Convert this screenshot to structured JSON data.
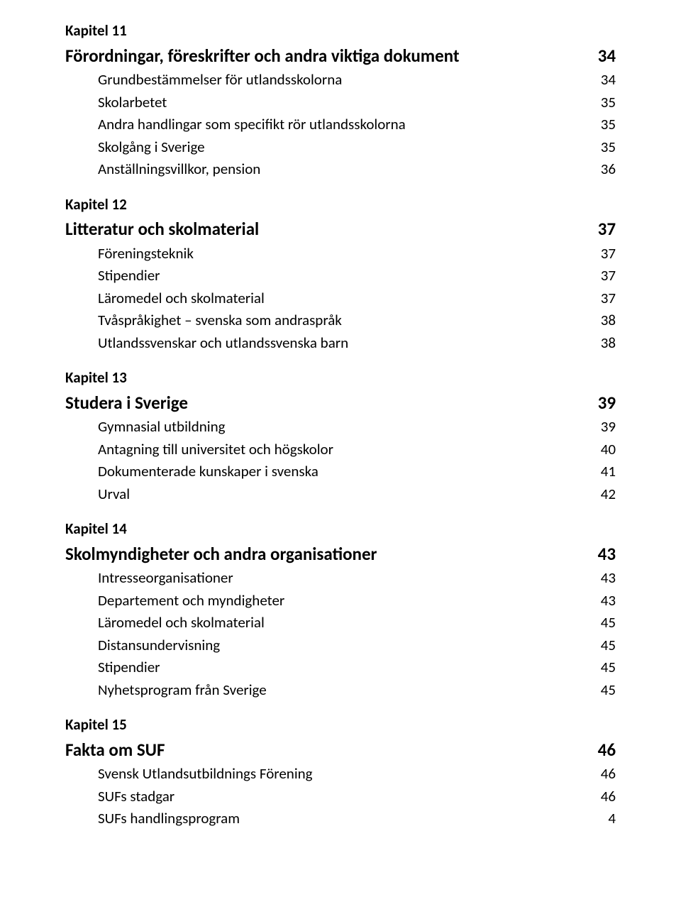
{
  "chapters": [
    {
      "label": "Kapitel 11",
      "title": "Förordningar, föreskrifter och andra viktiga dokument",
      "page": "34",
      "items": [
        {
          "label": "Grundbestämmelser för utlandsskolorna",
          "page": "34"
        },
        {
          "label": "Skolarbetet",
          "page": "35"
        },
        {
          "label": "Andra handlingar som specifikt rör utlandsskolorna",
          "page": "35"
        },
        {
          "label": "Skolgång i Sverige",
          "page": "35"
        },
        {
          "label": "Anställningsvillkor, pension",
          "page": "36"
        }
      ]
    },
    {
      "label": "Kapitel 12",
      "title": "Litteratur och skolmaterial",
      "page": "37",
      "items": [
        {
          "label": "Föreningsteknik",
          "page": "37"
        },
        {
          "label": "Stipendier",
          "page": "37"
        },
        {
          "label": "Läromedel och skolmaterial",
          "page": "37"
        },
        {
          "label": "Tvåspråkighet – svenska som andraspråk",
          "page": "38"
        },
        {
          "label": "Utlandssvenskar och utlandssvenska barn",
          "page": "38"
        }
      ]
    },
    {
      "label": "Kapitel 13",
      "title": "Studera i Sverige",
      "page": "39",
      "items": [
        {
          "label": "Gymnasial utbildning",
          "page": "39"
        },
        {
          "label": "Antagning till universitet och högskolor",
          "page": "40"
        },
        {
          "label": "Dokumenterade kunskaper i svenska",
          "page": "41"
        },
        {
          "label": "Urval",
          "page": "42"
        }
      ]
    },
    {
      "label": "Kapitel 14",
      "title": "Skolmyndigheter och andra organisationer",
      "page": "43",
      "items": [
        {
          "label": "Intresseorganisationer",
          "page": "43"
        },
        {
          "label": "Departement och myndigheter",
          "page": "43"
        },
        {
          "label": "Läromedel och skolmaterial",
          "page": "45"
        },
        {
          "label": "Distansundervisning",
          "page": "45"
        },
        {
          "label": "Stipendier",
          "page": "45"
        },
        {
          "label": "Nyhetsprogram från Sverige",
          "page": "45"
        }
      ]
    },
    {
      "label": "Kapitel 15",
      "title": "Fakta om SUF",
      "page": "46",
      "items": [
        {
          "label": "Svensk Utlandsutbildnings Förening",
          "page": "46"
        },
        {
          "label": "SUFs stadgar",
          "page": "46"
        },
        {
          "label": "SUFs handlingsprogram",
          "page": "4"
        }
      ]
    }
  ]
}
